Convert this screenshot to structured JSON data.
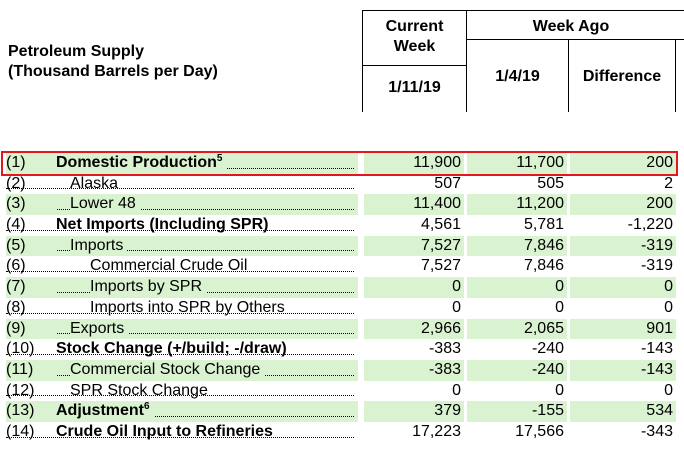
{
  "header": {
    "title_line1": "Petroleum Supply",
    "title_line2": "(Thousand Barrels per Day)",
    "current_week_line1": "Current",
    "current_week_line2": "Week",
    "week_ago": "Week Ago",
    "current_date": "1/11/19",
    "week_ago_date": "1/4/19",
    "difference": "Difference"
  },
  "rows": [
    {
      "num": "(1)",
      "label": "Domestic Production",
      "sup": "5",
      "bold": true,
      "indent": 0,
      "current": "11,900",
      "week_ago": "11,700",
      "diff": "200"
    },
    {
      "num": "(2)",
      "label": "Alaska",
      "sup": "",
      "bold": false,
      "indent": 1,
      "current": "507",
      "week_ago": "505",
      "diff": "2"
    },
    {
      "num": "(3)",
      "label": "Lower 48",
      "sup": "",
      "bold": false,
      "indent": 1,
      "current": "11,400",
      "week_ago": "11,200",
      "diff": "200"
    },
    {
      "num": "(4)",
      "label": "Net Imports (Including SPR)",
      "sup": "",
      "bold": true,
      "indent": 0,
      "current": "4,561",
      "week_ago": "5,781",
      "diff": "-1,220"
    },
    {
      "num": "(5)",
      "label": "Imports",
      "sup": "",
      "bold": false,
      "indent": 1,
      "current": "7,527",
      "week_ago": "7,846",
      "diff": "-319"
    },
    {
      "num": "(6)",
      "label": "Commercial Crude Oil",
      "sup": "",
      "bold": false,
      "indent": 2,
      "current": "7,527",
      "week_ago": "7,846",
      "diff": "-319"
    },
    {
      "num": "(7)",
      "label": "Imports by SPR",
      "sup": "",
      "bold": false,
      "indent": 2,
      "current": "0",
      "week_ago": "0",
      "diff": "0"
    },
    {
      "num": "(8)",
      "label": "Imports into SPR by Others",
      "sup": "",
      "bold": false,
      "indent": 2,
      "current": "0",
      "week_ago": "0",
      "diff": "0"
    },
    {
      "num": "(9)",
      "label": "Exports",
      "sup": "",
      "bold": false,
      "indent": 1,
      "current": "2,966",
      "week_ago": "2,065",
      "diff": "901"
    },
    {
      "num": "(10)",
      "label": "Stock Change (+/build; -/draw)",
      "sup": "",
      "bold": true,
      "indent": 0,
      "current": "-383",
      "week_ago": "-240",
      "diff": "-143"
    },
    {
      "num": "(11)",
      "label": "Commercial Stock Change",
      "sup": "",
      "bold": false,
      "indent": 1,
      "current": "-383",
      "week_ago": "-240",
      "diff": "-143"
    },
    {
      "num": "(12)",
      "label": "SPR Stock Change",
      "sup": "",
      "bold": false,
      "indent": 1,
      "current": "0",
      "week_ago": "0",
      "diff": "0"
    },
    {
      "num": "(13)",
      "label": "Adjustment",
      "sup": "6",
      "bold": true,
      "indent": 0,
      "current": "379",
      "week_ago": "-155",
      "diff": "534"
    },
    {
      "num": "(14)",
      "label": "Crude Oil Input to Refineries",
      "sup": "",
      "bold": true,
      "indent": 0,
      "current": "17,223",
      "week_ago": "17,566",
      "diff": "-343"
    }
  ],
  "colors": {
    "row_shade": "#d9f2d0",
    "highlight": "#e0191f"
  }
}
